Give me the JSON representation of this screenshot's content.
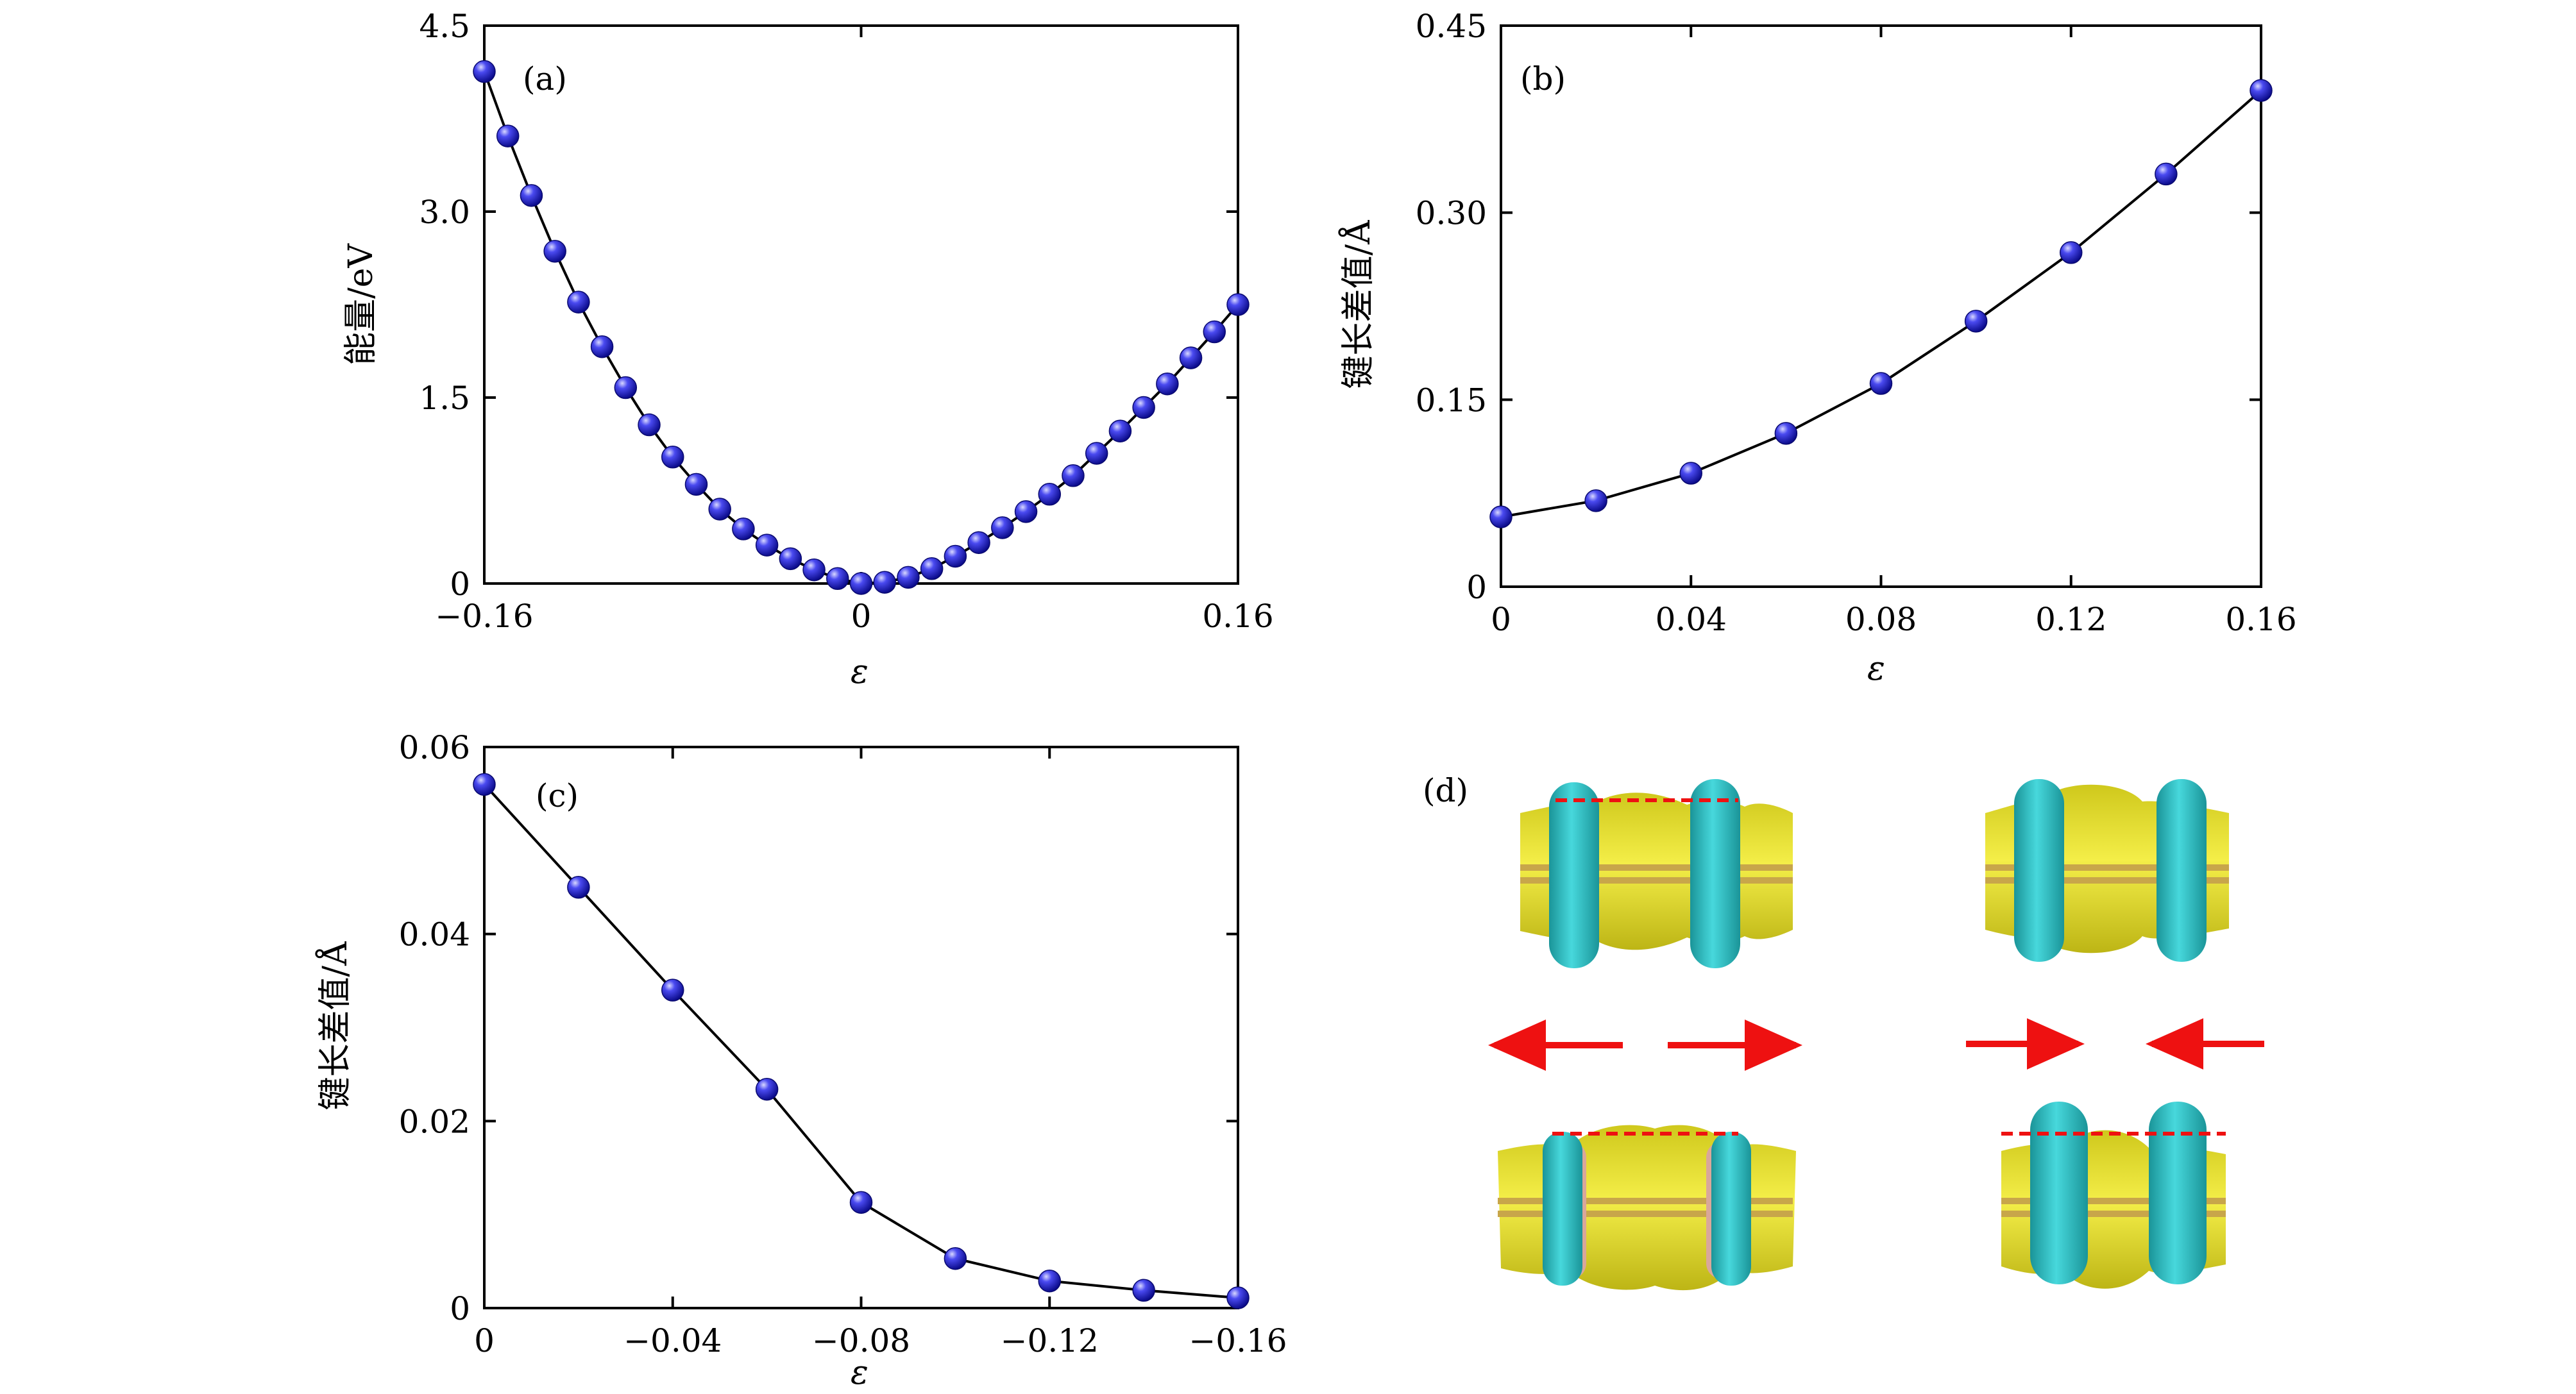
{
  "colors": {
    "marker": "#2828e6",
    "marker_highlight": "#b8b8ff",
    "line": "#000000",
    "axis": "#000000",
    "arrow": "#ee1111",
    "dash": "#ee1111",
    "cyan_orbital": "#2ec4c8",
    "cyan_dark": "#1f9ea3",
    "yellow_orbital": "#e6e02a",
    "yellow_dark": "#c9c21a",
    "bond": "#c8a64a"
  },
  "chart_data": [
    {
      "panel": "a",
      "label": "(a)",
      "type": "line",
      "xlabel": "ε",
      "ylabel": "能量/eV",
      "xlim": [
        -0.16,
        0.16
      ],
      "ylim": [
        0,
        4.5
      ],
      "xticks": [
        -0.16,
        0,
        0.16
      ],
      "xtick_labels": [
        "−0.16",
        "0",
        "0.16"
      ],
      "yticks": [
        0,
        1.5,
        3.0,
        4.5
      ],
      "ytick_labels": [
        "0",
        "1.5",
        "3.0",
        "4.5"
      ],
      "x": [
        -0.16,
        -0.15,
        -0.14,
        -0.13,
        -0.12,
        -0.11,
        -0.1,
        -0.09,
        -0.08,
        -0.07,
        -0.06,
        -0.05,
        -0.04,
        -0.03,
        -0.02,
        -0.01,
        0.0,
        0.01,
        0.02,
        0.03,
        0.04,
        0.05,
        0.06,
        0.07,
        0.08,
        0.09,
        0.1,
        0.11,
        0.12,
        0.13,
        0.14,
        0.15,
        0.16
      ],
      "y": [
        4.13,
        3.61,
        3.13,
        2.68,
        2.27,
        1.91,
        1.58,
        1.28,
        1.02,
        0.8,
        0.6,
        0.44,
        0.31,
        0.2,
        0.11,
        0.04,
        0.0,
        0.01,
        0.05,
        0.12,
        0.22,
        0.33,
        0.45,
        0.58,
        0.72,
        0.87,
        1.05,
        1.23,
        1.42,
        1.61,
        1.82,
        2.03,
        2.25
      ]
    },
    {
      "panel": "b",
      "label": "(b)",
      "type": "line",
      "xlabel": "ε",
      "ylabel": "键长差值/Å",
      "xlim": [
        0,
        0.16
      ],
      "ylim": [
        0,
        0.45
      ],
      "xticks": [
        0,
        0.04,
        0.08,
        0.12,
        0.16
      ],
      "xtick_labels": [
        "0",
        "0.04",
        "0.08",
        "0.12",
        "0.16"
      ],
      "yticks": [
        0,
        0.15,
        0.3,
        0.45
      ],
      "ytick_labels": [
        "0",
        "0.15",
        "0.30",
        "0.45"
      ],
      "x": [
        0,
        0.02,
        0.04,
        0.06,
        0.08,
        0.1,
        0.12,
        0.14,
        0.16
      ],
      "y": [
        0.056,
        0.069,
        0.091,
        0.123,
        0.163,
        0.213,
        0.268,
        0.331,
        0.398
      ]
    },
    {
      "panel": "c",
      "label": "(c)",
      "type": "line",
      "xlabel": "ε",
      "ylabel": "键长差值/Å",
      "xlim": [
        0,
        -0.16
      ],
      "ylim": [
        0,
        0.06
      ],
      "xticks": [
        0,
        -0.04,
        -0.08,
        -0.12,
        -0.16
      ],
      "xtick_labels": [
        "0",
        "−0.04",
        "−0.08",
        "−0.12",
        "−0.16"
      ],
      "yticks": [
        0,
        0.02,
        0.04,
        0.06
      ],
      "ytick_labels": [
        "0",
        "0.02",
        "0.04",
        "0.06"
      ],
      "x": [
        0,
        -0.02,
        -0.04,
        -0.06,
        -0.08,
        -0.1,
        -0.12,
        -0.14,
        -0.16
      ],
      "y": [
        0.056,
        0.045,
        0.034,
        0.0234,
        0.0113,
        0.0053,
        0.0029,
        0.0019,
        0.0011
      ]
    }
  ],
  "panel_d": {
    "label": "(d)"
  }
}
